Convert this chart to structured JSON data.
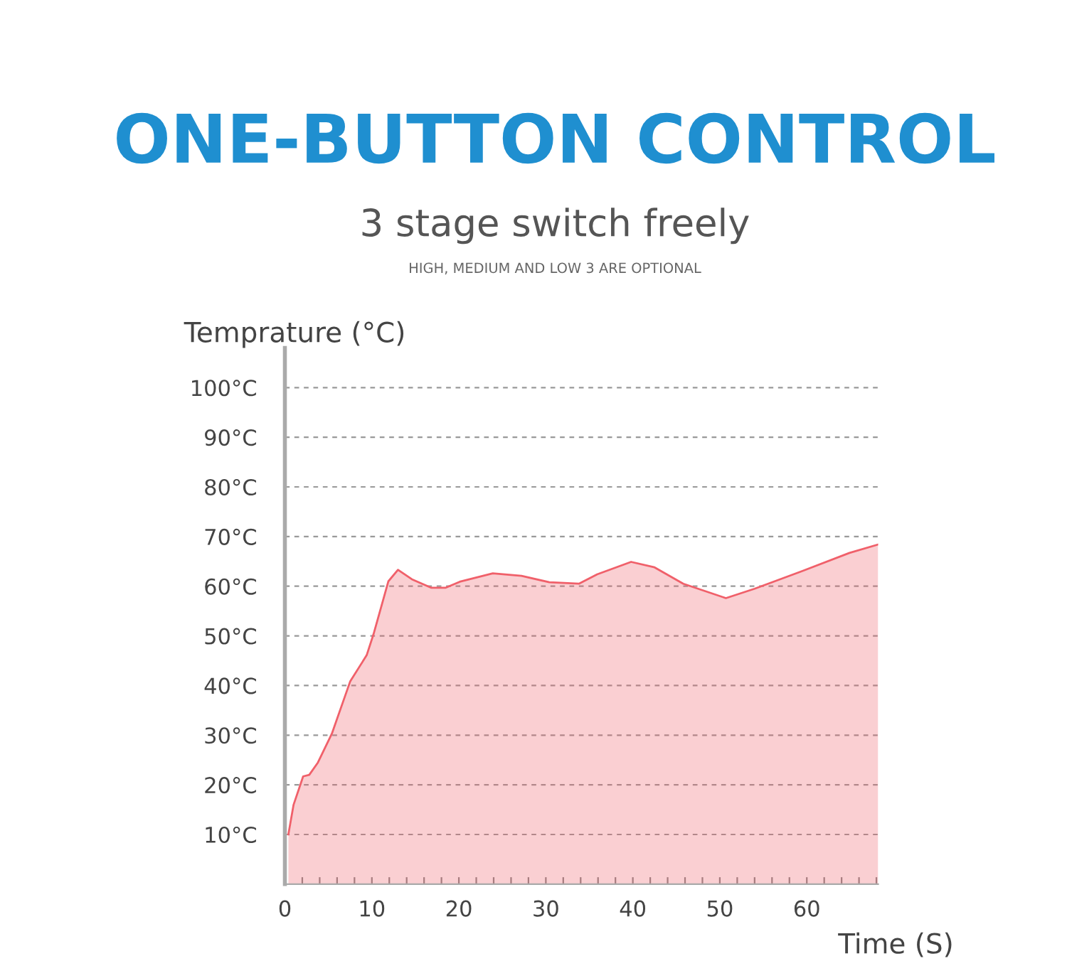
{
  "chart_data": {
    "type": "area",
    "title": "ONE-BUTTON CONTROL",
    "subtitle": "3 stage switch freely",
    "annotations": [
      "HIGH, MEDIUM AND LOW 3 ARE OPTIONAL"
    ],
    "xlabel": "Time (S)",
    "ylabel": "Temprature (°C)",
    "x": [
      0.4,
      1.0,
      2.1,
      2.8,
      3.8,
      5.4,
      7.5,
      9.4,
      10.2,
      11.9,
      13.0,
      14.6,
      16.8,
      18.5,
      20.1,
      23.9,
      27.2,
      30.4,
      33.8,
      35.9,
      39.8,
      42.5,
      45.8,
      50.7,
      54.0,
      59.4,
      64.9,
      68.2
    ],
    "series": [
      {
        "color": "#f0606a",
        "values": [
          10,
          16,
          21.7,
          22,
          24.5,
          30.3,
          40.8,
          46.1,
          50.4,
          61,
          63.3,
          61.4,
          59.7,
          59.7,
          60.9,
          62.6,
          62.1,
          60.8,
          60.5,
          62.4,
          64.9,
          63.8,
          60.5,
          57.6,
          59.5,
          63,
          66.7,
          68.4
        ]
      }
    ],
    "xlim": [
      0,
      68.2
    ],
    "ylim": [
      0,
      108
    ],
    "xticks": [
      0,
      {
        "value": 2,
        "label": null
      },
      {
        "value": 4,
        "label": null
      },
      {
        "value": 6,
        "label": null
      },
      {
        "value": 8,
        "label": null
      },
      10,
      {
        "value": 12,
        "label": null
      },
      {
        "value": 14,
        "label": null
      },
      {
        "value": 16,
        "label": null
      },
      {
        "value": 18,
        "label": null
      },
      20,
      {
        "value": 22,
        "label": null
      },
      {
        "value": 24,
        "label": null
      },
      {
        "value": 26,
        "label": null
      },
      {
        "value": 28,
        "label": null
      },
      30,
      {
        "value": 32,
        "label": null
      },
      {
        "value": 34,
        "label": null
      },
      {
        "value": 36,
        "label": null
      },
      {
        "value": 38,
        "label": null
      },
      40,
      {
        "value": 42,
        "label": null
      },
      {
        "value": 44,
        "label": null
      },
      {
        "value": 46,
        "label": null
      },
      {
        "value": 48,
        "label": null
      },
      50,
      {
        "value": 52,
        "label": null
      },
      {
        "value": 54,
        "label": null
      },
      {
        "value": 56,
        "label": null
      },
      {
        "value": 58,
        "label": null
      },
      60,
      {
        "value": 62,
        "label": null
      },
      {
        "value": 64,
        "label": null
      },
      {
        "value": 66,
        "label": null
      },
      {
        "value": 68,
        "label": null
      }
    ],
    "yticks": [
      {
        "value": 10,
        "label": "10°C"
      },
      {
        "value": 20,
        "label": "20°C"
      },
      {
        "value": 30,
        "label": "30°C"
      },
      {
        "value": 40,
        "label": "40°C"
      },
      {
        "value": 50,
        "label": "50°C"
      },
      {
        "value": 60,
        "label": "60°C"
      },
      {
        "value": 70,
        "label": "70°C"
      },
      {
        "value": 80,
        "label": "80°C"
      },
      {
        "value": 90,
        "label": "90°C"
      },
      {
        "value": 100,
        "label": "100°C"
      }
    ],
    "grid": "y",
    "line_style": "solid"
  }
}
